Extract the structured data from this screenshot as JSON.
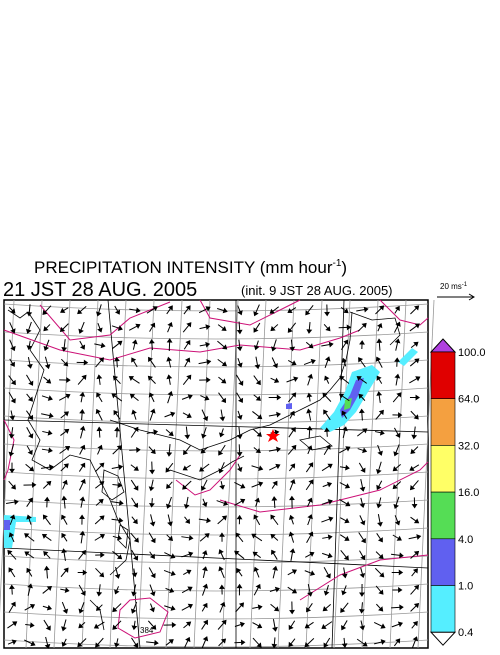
{
  "header": {
    "title": "PRECIPITATION INTENSITY (mm hour",
    "title_exponent": "-1",
    "title_close": ")",
    "time": "21 JST 28 AUG. 2005",
    "init": "(init. 9 JST 28 AUG. 2005)"
  },
  "wind_scale": {
    "label": "20 ms",
    "exponent": "-1"
  },
  "map": {
    "contour_label": "384"
  },
  "colorbar": {
    "labels": [
      "100.0",
      "64.0",
      "32.0",
      "16.0",
      "4.0",
      "1.0",
      "0.4"
    ],
    "colors": [
      "#e00000",
      "#f4a040",
      "#ffff66",
      "#55dd55",
      "#6060f0",
      "#55eeff"
    ],
    "over_color": "#b040e0",
    "under_color": "#ffffff"
  }
}
